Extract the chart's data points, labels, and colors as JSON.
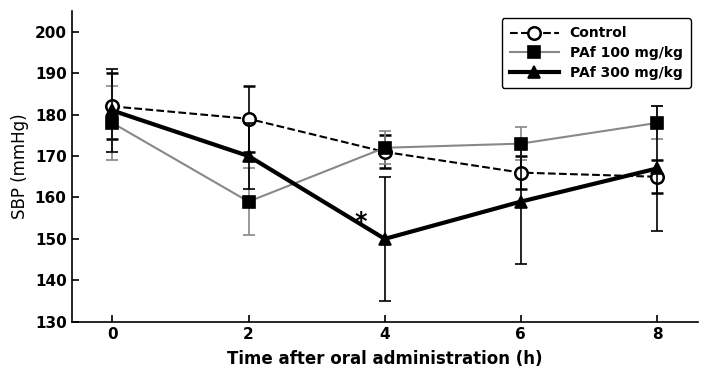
{
  "x": [
    0,
    2,
    4,
    6,
    8
  ],
  "control_y": [
    182,
    179,
    171,
    166,
    165
  ],
  "control_yerr": [
    8,
    8,
    4,
    4,
    4
  ],
  "paf100_y": [
    178,
    159,
    172,
    173,
    178
  ],
  "paf100_yerr": [
    9,
    8,
    4,
    4,
    4
  ],
  "paf300_y": [
    181,
    170,
    150,
    159,
    167
  ],
  "paf300_yerr": [
    10,
    8,
    15,
    15,
    15
  ],
  "xlabel": "Time after oral administration (h)",
  "ylabel": "SBP (mmHg)",
  "ylim": [
    130,
    205
  ],
  "yticks": [
    130,
    140,
    150,
    160,
    170,
    180,
    190,
    200
  ],
  "xticks": [
    0,
    2,
    4,
    6,
    8
  ],
  "legend_labels": [
    "Control",
    "PAf 100 mg/kg",
    "PAf 300 mg/kg"
  ],
  "star_x": 4,
  "star_y": 154,
  "control_color": "#000000",
  "paf100_color": "#888888",
  "paf300_color": "#000000",
  "paf100_linewidth": 1.5,
  "paf300_linewidth": 3.0,
  "control_linewidth": 1.5
}
